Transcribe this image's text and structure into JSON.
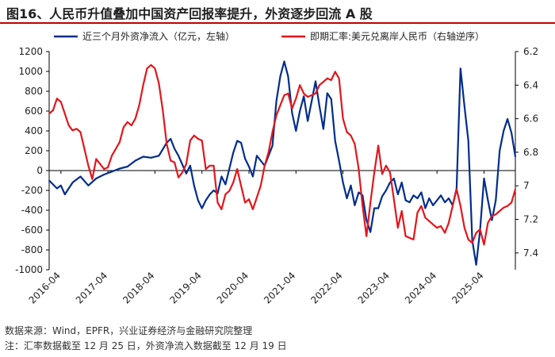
{
  "title": "图16、人民币升值叠加中国资产回报率提升，外资逐步回流 A 股",
  "footer": {
    "source": "数据来源：Wind，EPFR，兴业证券经济与金融研究院整理",
    "note": "注：汇率数据截至 12 月 25 日，外资净流入数据截至 12 月 19 日"
  },
  "colors": {
    "flow": "#002d8c",
    "fx": "#e3161c",
    "title_rule": "#c00000"
  },
  "chart_data": {
    "type": "line",
    "x_tick_labels": [
      "2016-04",
      "2017-04",
      "2018-04",
      "2019-04",
      "2020-04",
      "2021-04",
      "2022-04",
      "2023-04",
      "2024-04",
      "2025-04"
    ],
    "x_range": [
      "2016-01",
      "2025-12"
    ],
    "left_axis": {
      "ticks": [
        -1000,
        -800,
        -600,
        -400,
        -200,
        0,
        200,
        400,
        600,
        800,
        1000,
        1200
      ],
      "ylim": [
        -1000,
        1200
      ]
    },
    "right_axis": {
      "ticks": [
        6.2,
        6.4,
        6.6,
        6.8,
        7,
        7.2,
        7.4
      ],
      "ylim": [
        6.2,
        7.5
      ],
      "inverted": true
    },
    "grid": false,
    "legend_position": "top",
    "series": [
      {
        "name": "近三个月外资净流入（亿元，左轴）",
        "axis": "left",
        "color": "#002d8c",
        "points": [
          [
            "2016-01",
            -100
          ],
          [
            "2016-03",
            -180
          ],
          [
            "2016-04",
            -150
          ],
          [
            "2016-05",
            -240
          ],
          [
            "2016-06",
            -180
          ],
          [
            "2016-07",
            -120
          ],
          [
            "2016-09",
            -60
          ],
          [
            "2016-11",
            -150
          ],
          [
            "2017-01",
            -80
          ],
          [
            "2017-03",
            -40
          ],
          [
            "2017-05",
            -10
          ],
          [
            "2017-07",
            20
          ],
          [
            "2017-09",
            40
          ],
          [
            "2017-11",
            100
          ],
          [
            "2018-01",
            140
          ],
          [
            "2018-03",
            130
          ],
          [
            "2018-05",
            150
          ],
          [
            "2018-07",
            280
          ],
          [
            "2018-08",
            320
          ],
          [
            "2018-09",
            220
          ],
          [
            "2018-10",
            150
          ],
          [
            "2018-11",
            60
          ],
          [
            "2018-12",
            -30
          ],
          [
            "2019-01",
            50
          ],
          [
            "2019-02",
            -150
          ],
          [
            "2019-03",
            -300
          ],
          [
            "2019-04",
            -380
          ],
          [
            "2019-05",
            -300
          ],
          [
            "2019-06",
            -240
          ],
          [
            "2019-07",
            -200
          ],
          [
            "2019-08",
            -230
          ],
          [
            "2019-09",
            -60
          ],
          [
            "2019-10",
            -140
          ],
          [
            "2019-11",
            20
          ],
          [
            "2019-12",
            180
          ],
          [
            "2020-01",
            300
          ],
          [
            "2020-02",
            280
          ],
          [
            "2020-03",
            120
          ],
          [
            "2020-04",
            40
          ],
          [
            "2020-05",
            -60
          ],
          [
            "2020-06",
            150
          ],
          [
            "2020-07",
            100
          ],
          [
            "2020-08",
            50
          ],
          [
            "2020-09",
            150
          ],
          [
            "2020-10",
            250
          ],
          [
            "2020-11",
            700
          ],
          [
            "2020-12",
            950
          ],
          [
            "2021-01",
            1100
          ],
          [
            "2021-02",
            950
          ],
          [
            "2021-03",
            580
          ],
          [
            "2021-04",
            400
          ],
          [
            "2021-05",
            600
          ],
          [
            "2021-06",
            750
          ],
          [
            "2021-07",
            500
          ],
          [
            "2021-08",
            700
          ],
          [
            "2021-09",
            900
          ],
          [
            "2021-10",
            650
          ],
          [
            "2021-11",
            420
          ],
          [
            "2021-12",
            780
          ],
          [
            "2022-01",
            720
          ],
          [
            "2022-02",
            300
          ],
          [
            "2022-03",
            100
          ],
          [
            "2022-04",
            -120
          ],
          [
            "2022-05",
            -280
          ],
          [
            "2022-06",
            -150
          ],
          [
            "2022-07",
            -350
          ],
          [
            "2022-08",
            -220
          ],
          [
            "2022-09",
            -250
          ],
          [
            "2022-10",
            -500
          ],
          [
            "2022-11",
            -620
          ],
          [
            "2022-12",
            -380
          ],
          [
            "2023-01",
            -380
          ],
          [
            "2023-02",
            -260
          ],
          [
            "2023-03",
            -200
          ],
          [
            "2023-04",
            -120
          ],
          [
            "2023-05",
            -80
          ],
          [
            "2023-06",
            -240
          ],
          [
            "2023-07",
            -120
          ],
          [
            "2023-08",
            -300
          ],
          [
            "2023-09",
            -320
          ],
          [
            "2023-10",
            -250
          ],
          [
            "2023-11",
            -280
          ],
          [
            "2023-12",
            -220
          ],
          [
            "2024-01",
            -380
          ],
          [
            "2024-02",
            -280
          ],
          [
            "2024-03",
            -350
          ],
          [
            "2024-04",
            -300
          ],
          [
            "2024-05",
            -250
          ],
          [
            "2024-06",
            -320
          ],
          [
            "2024-07",
            -280
          ],
          [
            "2024-08",
            -350
          ],
          [
            "2024-09",
            -180
          ],
          [
            "2024-10",
            1030
          ],
          [
            "2024-11",
            650
          ],
          [
            "2024-12",
            300
          ],
          [
            "2025-01",
            -700
          ],
          [
            "2025-02",
            -950
          ],
          [
            "2025-03",
            -600
          ],
          [
            "2025-04",
            -80
          ],
          [
            "2025-05",
            -300
          ],
          [
            "2025-06",
            -500
          ],
          [
            "2025-07",
            -300
          ],
          [
            "2025-08",
            200
          ],
          [
            "2025-09",
            400
          ],
          [
            "2025-10",
            520
          ],
          [
            "2025-11",
            380
          ],
          [
            "2025-12",
            140
          ]
        ]
      },
      {
        "name": "即期汇率:美元兑离岸人民币（右轴逆序）",
        "axis": "right",
        "color": "#e3161c",
        "points": [
          [
            "2016-01",
            6.57
          ],
          [
            "2016-02",
            6.55
          ],
          [
            "2016-03",
            6.48
          ],
          [
            "2016-04",
            6.5
          ],
          [
            "2016-05",
            6.57
          ],
          [
            "2016-06",
            6.64
          ],
          [
            "2016-07",
            6.67
          ],
          [
            "2016-08",
            6.66
          ],
          [
            "2016-09",
            6.68
          ],
          [
            "2016-10",
            6.78
          ],
          [
            "2016-11",
            6.88
          ],
          [
            "2016-12",
            6.96
          ],
          [
            "2017-01",
            6.84
          ],
          [
            "2017-02",
            6.87
          ],
          [
            "2017-03",
            6.9
          ],
          [
            "2017-04",
            6.89
          ],
          [
            "2017-05",
            6.82
          ],
          [
            "2017-06",
            6.78
          ],
          [
            "2017-07",
            6.74
          ],
          [
            "2017-08",
            6.65
          ],
          [
            "2017-09",
            6.62
          ],
          [
            "2017-10",
            6.64
          ],
          [
            "2017-11",
            6.6
          ],
          [
            "2017-12",
            6.52
          ],
          [
            "2018-01",
            6.4
          ],
          [
            "2018-02",
            6.3
          ],
          [
            "2018-03",
            6.28
          ],
          [
            "2018-04",
            6.3
          ],
          [
            "2018-05",
            6.39
          ],
          [
            "2018-06",
            6.55
          ],
          [
            "2018-07",
            6.75
          ],
          [
            "2018-08",
            6.85
          ],
          [
            "2018-09",
            6.86
          ],
          [
            "2018-10",
            6.95
          ],
          [
            "2018-11",
            6.92
          ],
          [
            "2018-12",
            6.87
          ],
          [
            "2019-01",
            6.73
          ],
          [
            "2019-02",
            6.7
          ],
          [
            "2019-03",
            6.72
          ],
          [
            "2019-04",
            6.73
          ],
          [
            "2019-05",
            6.9
          ],
          [
            "2019-06",
            6.88
          ],
          [
            "2019-07",
            6.88
          ],
          [
            "2019-08",
            7.1
          ],
          [
            "2019-09",
            7.14
          ],
          [
            "2019-10",
            7.05
          ],
          [
            "2019-11",
            7.03
          ],
          [
            "2019-12",
            6.98
          ],
          [
            "2020-01",
            6.9
          ],
          [
            "2020-02",
            7.0
          ],
          [
            "2020-03",
            7.1
          ],
          [
            "2020-04",
            7.08
          ],
          [
            "2020-05",
            7.14
          ],
          [
            "2020-06",
            7.07
          ],
          [
            "2020-07",
            7.0
          ],
          [
            "2020-08",
            6.88
          ],
          [
            "2020-09",
            6.8
          ],
          [
            "2020-10",
            6.68
          ],
          [
            "2020-11",
            6.58
          ],
          [
            "2020-12",
            6.52
          ],
          [
            "2021-01",
            6.46
          ],
          [
            "2021-02",
            6.45
          ],
          [
            "2021-03",
            6.54
          ],
          [
            "2021-04",
            6.48
          ],
          [
            "2021-05",
            6.4
          ],
          [
            "2021-06",
            6.45
          ],
          [
            "2021-07",
            6.47
          ],
          [
            "2021-08",
            6.46
          ],
          [
            "2021-09",
            6.45
          ],
          [
            "2021-10",
            6.4
          ],
          [
            "2021-11",
            6.38
          ],
          [
            "2021-12",
            6.36
          ],
          [
            "2022-01",
            6.37
          ],
          [
            "2022-02",
            6.32
          ],
          [
            "2022-03",
            6.36
          ],
          [
            "2022-04",
            6.6
          ],
          [
            "2022-05",
            6.68
          ],
          [
            "2022-06",
            6.7
          ],
          [
            "2022-07",
            6.75
          ],
          [
            "2022-08",
            6.9
          ],
          [
            "2022-09",
            7.12
          ],
          [
            "2022-10",
            7.3
          ],
          [
            "2022-11",
            7.1
          ],
          [
            "2022-12",
            6.92
          ],
          [
            "2023-01",
            6.76
          ],
          [
            "2023-02",
            6.93
          ],
          [
            "2023-03",
            6.88
          ],
          [
            "2023-04",
            6.92
          ],
          [
            "2023-05",
            7.08
          ],
          [
            "2023-06",
            7.25
          ],
          [
            "2023-07",
            7.15
          ],
          [
            "2023-08",
            7.3
          ],
          [
            "2023-09",
            7.31
          ],
          [
            "2023-10",
            7.32
          ],
          [
            "2023-11",
            7.16
          ],
          [
            "2023-12",
            7.12
          ],
          [
            "2024-01",
            7.19
          ],
          [
            "2024-02",
            7.21
          ],
          [
            "2024-03",
            7.23
          ],
          [
            "2024-04",
            7.25
          ],
          [
            "2024-05",
            7.24
          ],
          [
            "2024-06",
            7.28
          ],
          [
            "2024-07",
            7.22
          ],
          [
            "2024-08",
            7.12
          ],
          [
            "2024-09",
            7.02
          ],
          [
            "2024-10",
            7.12
          ],
          [
            "2024-11",
            7.25
          ],
          [
            "2024-12",
            7.32
          ],
          [
            "2025-01",
            7.34
          ],
          [
            "2025-02",
            7.28
          ],
          [
            "2025-03",
            7.26
          ],
          [
            "2025-04",
            7.35
          ],
          [
            "2025-05",
            7.22
          ],
          [
            "2025-06",
            7.18
          ],
          [
            "2025-07",
            7.17
          ],
          [
            "2025-08",
            7.15
          ],
          [
            "2025-09",
            7.13
          ],
          [
            "2025-10",
            7.12
          ],
          [
            "2025-11",
            7.1
          ],
          [
            "2025-12",
            7.02
          ]
        ]
      }
    ]
  }
}
